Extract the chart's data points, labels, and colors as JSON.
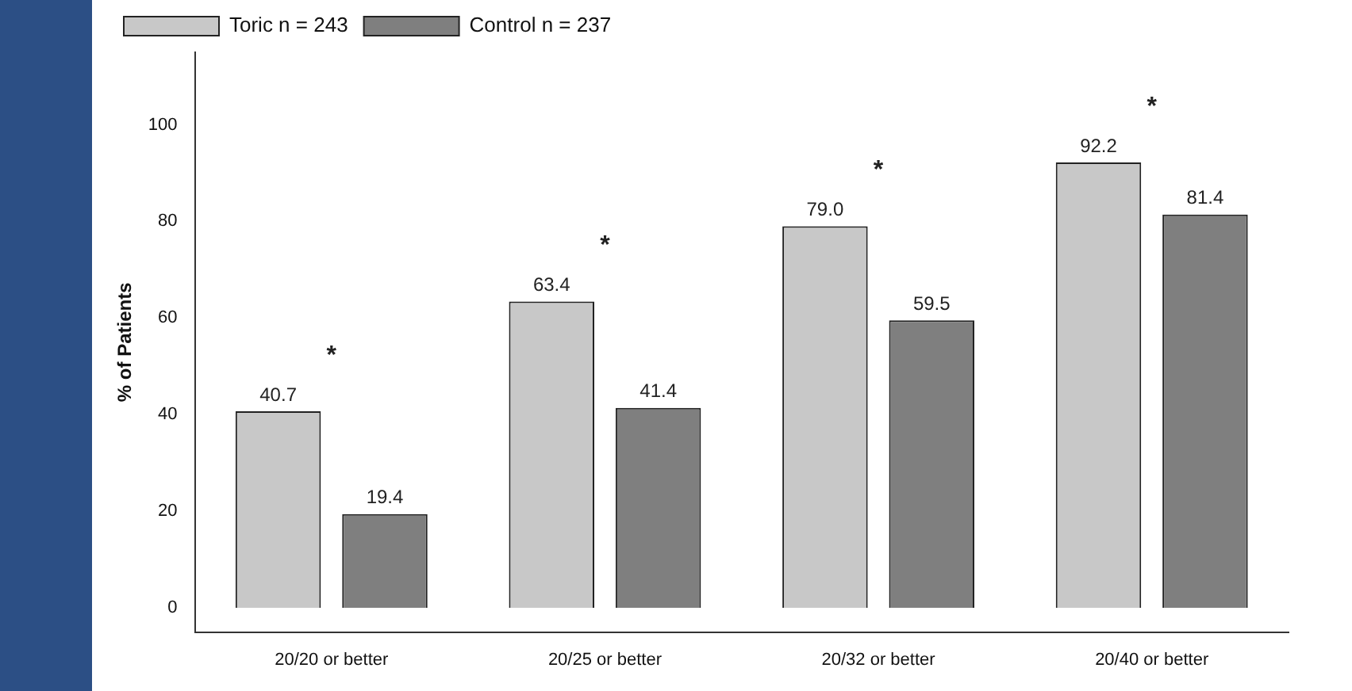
{
  "chart_data": {
    "type": "bar",
    "ylabel": "% of Patients",
    "categories": [
      "20/20 or better",
      "20/25 or better",
      "20/32 or better",
      "20/40 or better"
    ],
    "series": [
      {
        "name": "Toric n = 243",
        "color": "#c8c8c8",
        "values": [
          40.7,
          63.4,
          79.0,
          92.2
        ],
        "value_labels": [
          "40.7",
          "63.4",
          "79.0",
          "92.2"
        ]
      },
      {
        "name": "Control n = 237",
        "color": "#7f7f7f",
        "values": [
          19.4,
          41.4,
          59.5,
          81.4
        ],
        "value_labels": [
          "19.4",
          "41.4",
          "59.5",
          "81.4"
        ]
      }
    ],
    "annotations": [
      "*",
      "*",
      "*",
      "*"
    ],
    "ylim": [
      -5,
      115
    ],
    "yticks": [
      0,
      20,
      40,
      60,
      80,
      100
    ],
    "grid": false,
    "legend": "top left"
  }
}
